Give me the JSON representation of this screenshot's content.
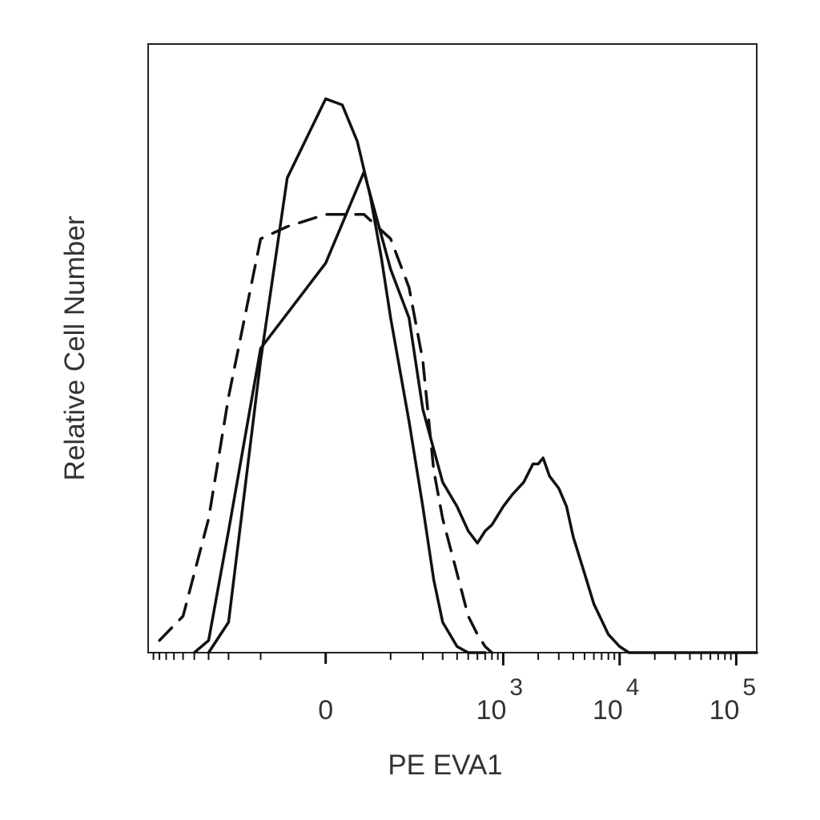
{
  "chart_data": {
    "type": "line",
    "title": "",
    "xlabel": "PE EVA1",
    "ylabel": "Relative Cell Number",
    "x_scale": "biexponential",
    "xlim": [
      -1000,
      150000
    ],
    "ylim": [
      0,
      100
    ],
    "grid": false,
    "legend": "none",
    "x_tick_labels": [
      {
        "value": 0,
        "base": "0",
        "exp": ""
      },
      {
        "value": 1000,
        "base": "10",
        "exp": "3"
      },
      {
        "value": 10000,
        "base": "10",
        "exp": "4"
      },
      {
        "value": 100000,
        "base": "10",
        "exp": "5"
      }
    ],
    "series": [
      {
        "style": "solid",
        "x": [
          -300,
          -200,
          -100,
          -50,
          0,
          20,
          40,
          60,
          80,
          100,
          150,
          200,
          250,
          300,
          400,
          500,
          700
        ],
        "y": [
          0,
          5,
          48,
          78,
          91,
          90,
          84,
          75,
          65,
          55,
          38,
          24,
          12,
          5,
          1,
          0,
          0
        ]
      },
      {
        "style": "dashed",
        "x": [
          -800,
          -500,
          -300,
          -200,
          -100,
          -50,
          0,
          50,
          100,
          150,
          200,
          250,
          300,
          400,
          500,
          600,
          700,
          800
        ],
        "y": [
          2,
          6,
          22,
          42,
          68,
          70,
          72,
          72,
          68,
          60,
          48,
          30,
          22,
          13,
          6,
          3,
          1,
          0
        ]
      },
      {
        "style": "solid",
        "x": [
          -400,
          -300,
          -200,
          -100,
          0,
          50,
          100,
          150,
          200,
          300,
          400,
          500,
          600,
          700,
          800,
          1000,
          1200,
          1500,
          1800,
          2000,
          2200,
          2500,
          3000,
          3500,
          4000,
          5000,
          6000,
          8000,
          10000,
          12000,
          20000,
          50000,
          150000
        ],
        "y": [
          0,
          2,
          20,
          50,
          64,
          79,
          63,
          55,
          40,
          28,
          24,
          20,
          18,
          20,
          21,
          24,
          26,
          28,
          31,
          31,
          32,
          29,
          27,
          24,
          19,
          13,
          8,
          3,
          1,
          0,
          0,
          0,
          0
        ]
      }
    ]
  }
}
